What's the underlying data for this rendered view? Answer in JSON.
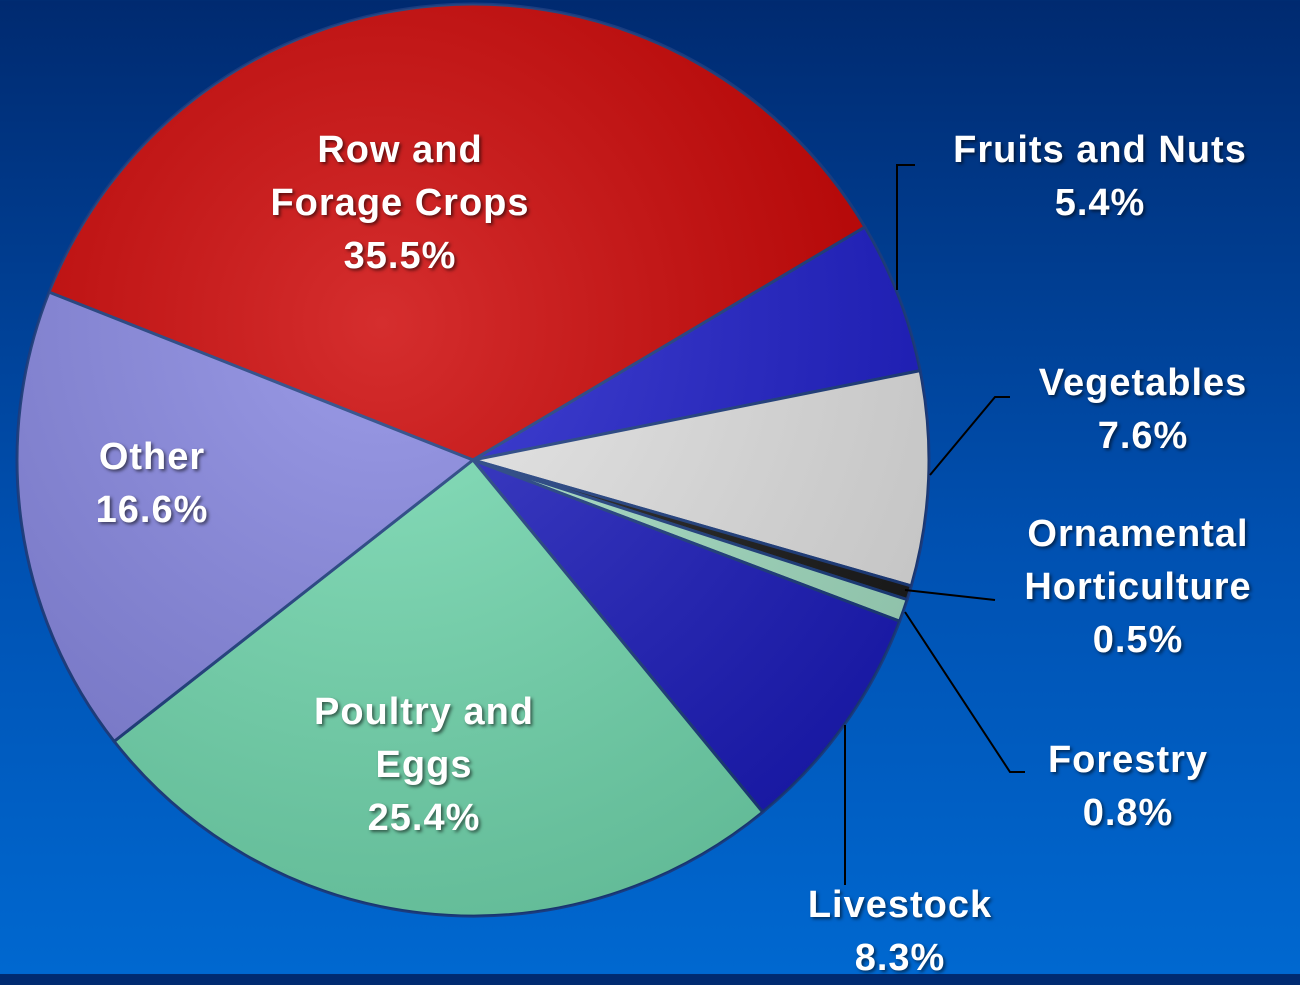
{
  "chart_data": {
    "type": "pie",
    "categories": [
      "Row and Forage Crops",
      "Fruits and Nuts",
      "Vegetables",
      "Ornamental Horticulture",
      "Forestry",
      "Livestock",
      "Poultry and Eggs",
      "Other"
    ],
    "values": [
      35.5,
      5.4,
      7.6,
      0.5,
      0.8,
      8.3,
      25.4,
      16.6
    ],
    "value_labels": [
      "35.5%",
      "5.4%",
      "7.6%",
      "0.5%",
      "0.8%",
      "8.3%",
      "25.4%",
      "16.6%"
    ],
    "colors": [
      "#cc0000",
      "#1e1ecc",
      "#e6e6e6",
      "#1a1a1a",
      "#a6e2c6",
      "#1c1cbe",
      "#74dcb2",
      "#8686e2"
    ]
  }
}
